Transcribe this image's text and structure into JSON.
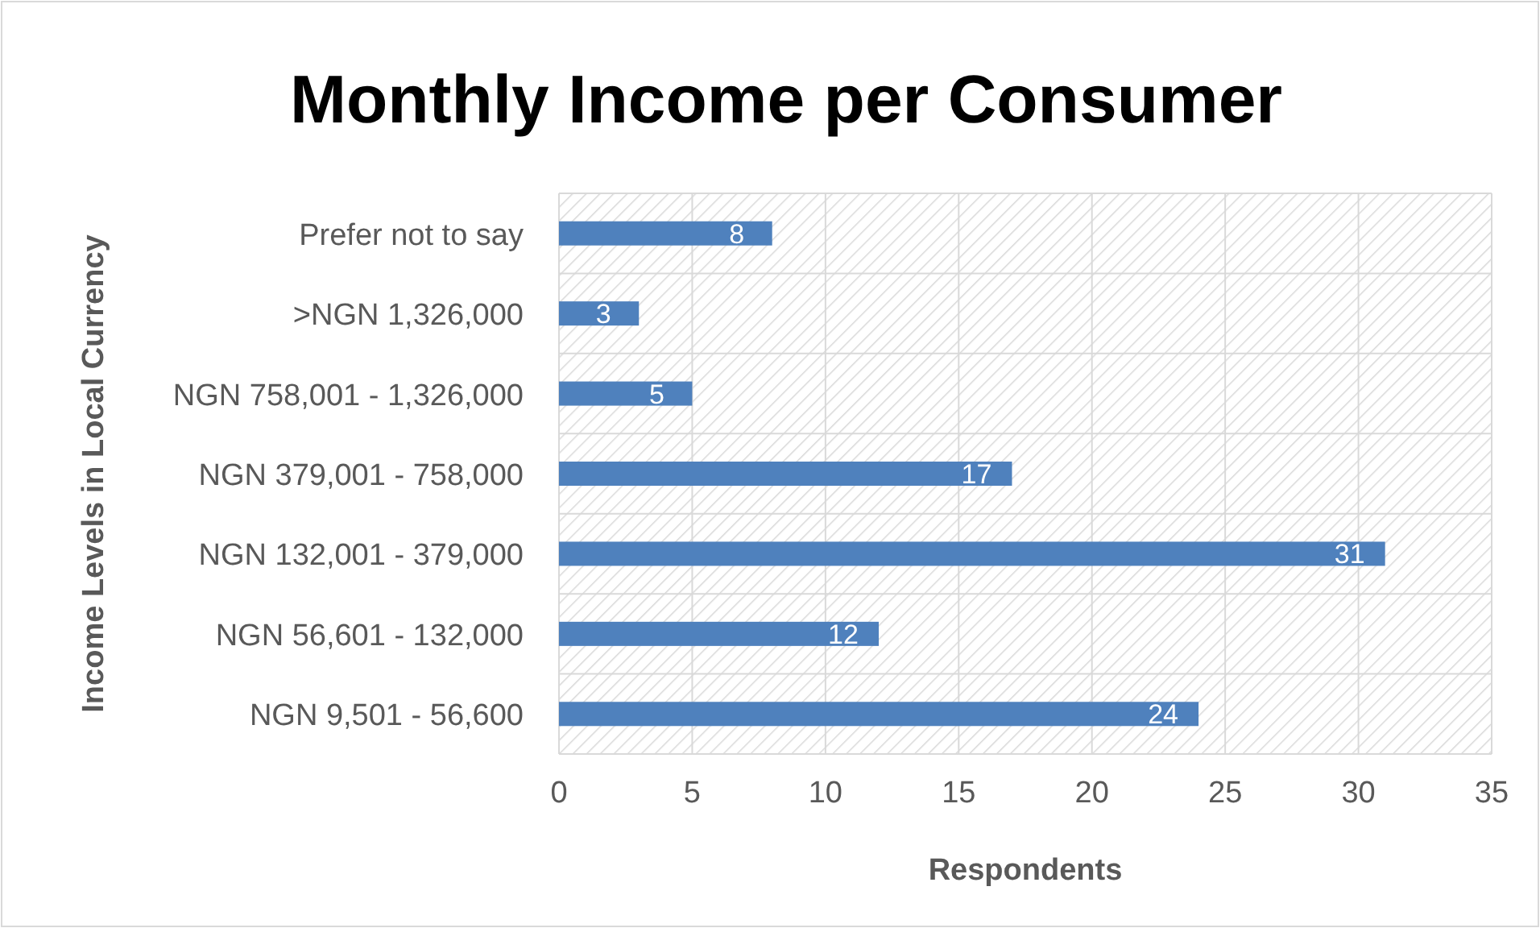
{
  "chart_data": {
    "type": "bar",
    "orientation": "horizontal",
    "title": "Monthly Income per Consumer",
    "xlabel": "Respondents",
    "ylabel": "Income Levels in Local Currency",
    "categories": [
      "Prefer not to say",
      ">NGN 1,326,000",
      "NGN 758,001 - 1,326,000",
      "NGN 379,001 - 758,000",
      "NGN 132,001 - 379,000",
      "NGN 56,601 - 132,000",
      "NGN 9,501 - 56,600"
    ],
    "values": [
      8,
      3,
      5,
      17,
      31,
      12,
      24
    ],
    "color": "#4f81bd",
    "xlim": [
      0,
      35
    ],
    "xticks": [
      0,
      5,
      10,
      15,
      20,
      25,
      30,
      35
    ],
    "grid": true,
    "data_labels": true
  }
}
